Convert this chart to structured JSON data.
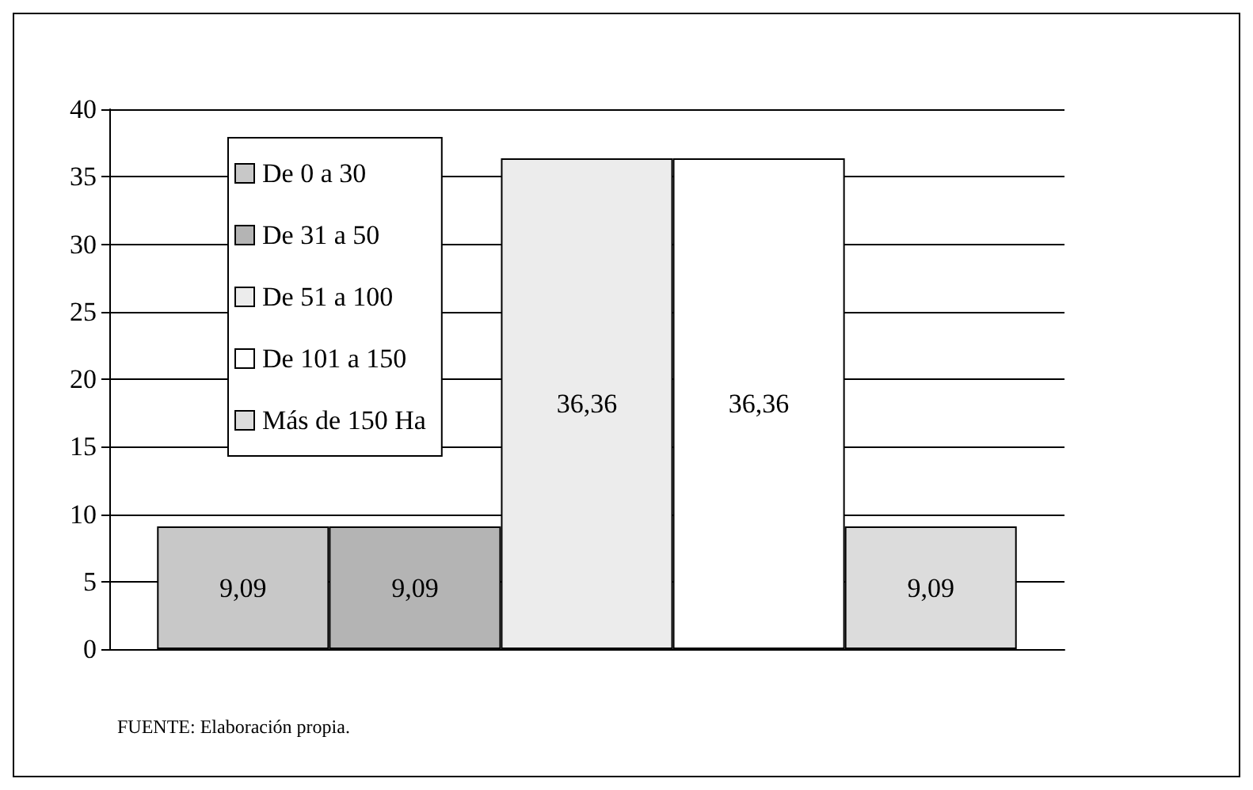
{
  "chart_data": {
    "type": "bar",
    "categories": [
      null
    ],
    "series": [
      {
        "name": "De 0 a 30",
        "color": "#c8c8c8",
        "values": [
          9.09
        ],
        "value_labels": [
          "9,09"
        ]
      },
      {
        "name": "De 31 a 50",
        "color": "#b4b4b4",
        "values": [
          9.09
        ],
        "value_labels": [
          "9,09"
        ]
      },
      {
        "name": "De 51 a 100",
        "color": "#ececec",
        "values": [
          36.36
        ],
        "value_labels": [
          "36,36"
        ]
      },
      {
        "name": "De 101 a 150",
        "color": "#ffffff",
        "values": [
          36.36
        ],
        "value_labels": [
          "36,36"
        ]
      },
      {
        "name": "Más de 150 Ha",
        "color": "#dcdcdc",
        "values": [
          9.09
        ],
        "value_labels": [
          "9,09"
        ]
      }
    ],
    "ylim": [
      0,
      40
    ],
    "yticks": [
      0,
      5,
      10,
      15,
      20,
      25,
      30,
      35,
      40
    ],
    "grid": "y",
    "legend": "top left",
    "annotations": [
      "FUENTE: Elaboración propia."
    ]
  }
}
